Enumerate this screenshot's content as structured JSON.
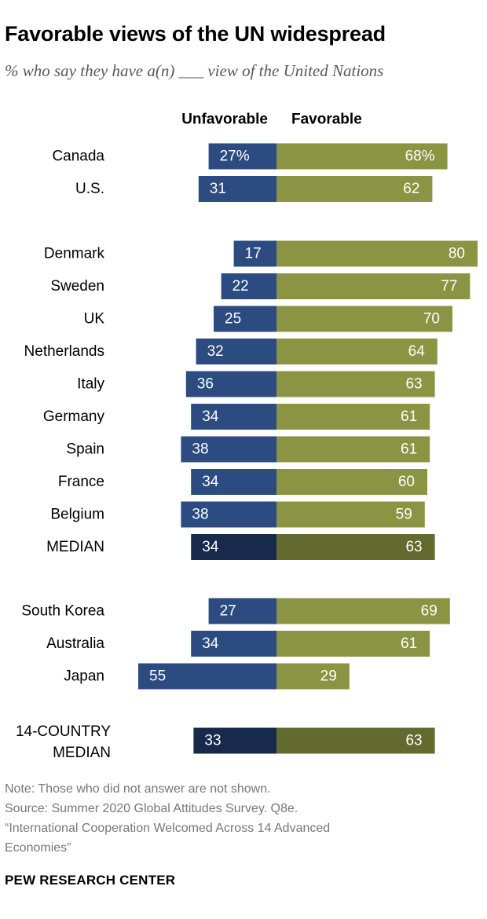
{
  "title": "Favorable views of the UN widespread",
  "subtitle": "% who say they have a(n) ___ view of the United Nations",
  "notes": {
    "note": "Note: Those who did not answer are not shown.",
    "source": "Source: Summer 2020 Global Attitudes Survey. Q8e.",
    "report1": "“International Cooperation Welcomed Across 14 Advanced",
    "report2": "Economies”"
  },
  "brand": "PEW RESEARCH CENTER",
  "colors": {
    "unfavorable": "#2c4b80",
    "favorable": "#8a9443",
    "unfavorable_median": "#172a4c",
    "favorable_median": "#636a30"
  },
  "chart_data": {
    "type": "bar",
    "orientation": "diverging-horizontal",
    "series_labels": {
      "unfavorable": "Unfavorable",
      "favorable": "Favorable"
    },
    "rows": [
      {
        "label": "Canada",
        "unfavorable": 27,
        "favorable": 68,
        "unfavorable_label": "27%",
        "favorable_label": "68%",
        "group": 0
      },
      {
        "label": "U.S.",
        "unfavorable": 31,
        "favorable": 62,
        "group": 0
      },
      {
        "label": "Denmark",
        "unfavorable": 17,
        "favorable": 80,
        "group": 1
      },
      {
        "label": "Sweden",
        "unfavorable": 22,
        "favorable": 77,
        "group": 1
      },
      {
        "label": "UK",
        "unfavorable": 25,
        "favorable": 70,
        "group": 1
      },
      {
        "label": "Netherlands",
        "unfavorable": 32,
        "favorable": 64,
        "group": 1
      },
      {
        "label": "Italy",
        "unfavorable": 36,
        "favorable": 63,
        "group": 1
      },
      {
        "label": "Germany",
        "unfavorable": 34,
        "favorable": 61,
        "group": 1
      },
      {
        "label": "Spain",
        "unfavorable": 38,
        "favorable": 61,
        "group": 1
      },
      {
        "label": "France",
        "unfavorable": 34,
        "favorable": 60,
        "group": 1
      },
      {
        "label": "Belgium",
        "unfavorable": 38,
        "favorable": 59,
        "group": 1
      },
      {
        "label": "MEDIAN",
        "unfavorable": 34,
        "favorable": 63,
        "group": 1,
        "median": true
      },
      {
        "label": "South Korea",
        "unfavorable": 27,
        "favorable": 69,
        "group": 2
      },
      {
        "label": "Australia",
        "unfavorable": 34,
        "favorable": 61,
        "group": 2
      },
      {
        "label": "Japan",
        "unfavorable": 55,
        "favorable": 29,
        "group": 2
      },
      {
        "label_lines": [
          "14-COUNTRY",
          "MEDIAN"
        ],
        "unfavorable": 33,
        "favorable": 63,
        "group": 3,
        "median": true
      }
    ]
  }
}
